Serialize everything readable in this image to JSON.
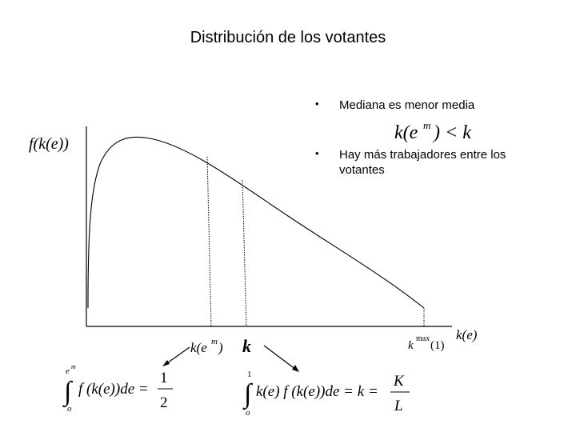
{
  "title": "Distribución de los votantes",
  "bullets": [
    {
      "text": "Mediana es menor media"
    },
    {
      "text": "Hay más trabajadores entre los votantes"
    }
  ],
  "diagram": {
    "y_axis_label": "f(k(e))",
    "x_axis_label": "k(e)",
    "inequality": {
      "lhs": "k(e",
      "sup": "m",
      "rhs": ") < k"
    },
    "median_label": {
      "base": "k(e",
      "sup": "m",
      "end": ")"
    },
    "mean_label": "k",
    "kmax_label": {
      "base": "k",
      "sup": "max",
      "end": "(1)"
    },
    "median_integral": {
      "upper_base": "e",
      "upper_sup": "m",
      "lower": "o",
      "integrand": "f (k(e))de =",
      "numerator": "1",
      "denominator": "2"
    },
    "mean_integral": {
      "upper": "1",
      "lower": "o",
      "integrand": "k(e) f (k(e))de = k =",
      "numerator": "K",
      "denominator": "L"
    }
  }
}
